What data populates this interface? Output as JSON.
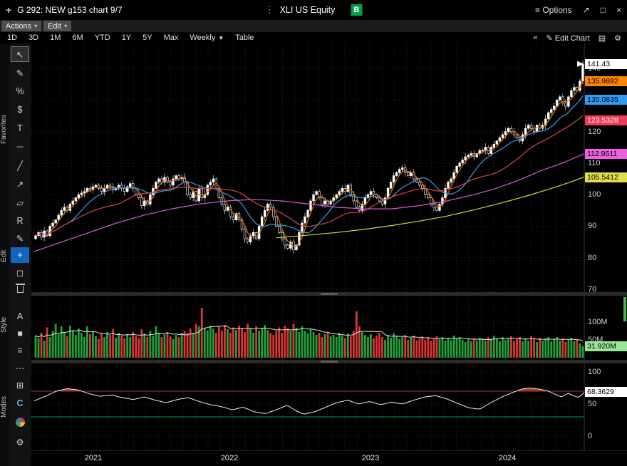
{
  "titlebar": {
    "drag_icon": "+",
    "title": "G 292: NEW g153 chart 9/7",
    "more_icon": "⋮",
    "security": "XLI US Equity",
    "panel_badge": "B",
    "options_icon": "≡",
    "options_label": "Options",
    "popout_icon": "↗",
    "maximize_icon": "□",
    "close_icon": "×"
  },
  "menubar": {
    "actions_label": "Actions",
    "edit_label": "Edit",
    "caret": "▾"
  },
  "toolbar": {
    "ranges": [
      "1D",
      "3D",
      "1M",
      "6M",
      "YTD",
      "1Y",
      "5Y",
      "Max"
    ],
    "period_label": "Weekly",
    "period_caret": "▼",
    "table_label": "Table",
    "collapse_icon": "«",
    "edit_chart_icon": "✎",
    "edit_chart_label": "Edit Chart",
    "snapshot_icon": "▤",
    "settings_icon": "⚙"
  },
  "sidebar": {
    "section_labels": [
      "Favorites",
      "Edit",
      "Style",
      "Modes"
    ],
    "tools": [
      {
        "name": "cursor",
        "glyph": "↖"
      },
      {
        "name": "draw",
        "glyph": "✎"
      },
      {
        "name": "measure-percent",
        "glyph": "%"
      },
      {
        "name": "measure-price",
        "glyph": "$"
      },
      {
        "name": "text-annotation",
        "glyph": "T"
      },
      {
        "name": "horizontal-line",
        "glyph": "─"
      },
      {
        "name": "trend-line",
        "glyph": "╱"
      },
      {
        "name": "arrow",
        "glyph": "↗"
      },
      {
        "name": "channel",
        "glyph": "▱"
      },
      {
        "name": "regression",
        "glyph": "R"
      },
      {
        "name": "edit-draw",
        "glyph": "✎"
      },
      {
        "name": "move",
        "glyph": "+"
      },
      {
        "name": "eraser",
        "glyph": "◻"
      },
      {
        "name": "delete",
        "glyph": ""
      },
      {
        "name": "text-style",
        "glyph": "A"
      },
      {
        "name": "fill-style",
        "glyph": "■"
      },
      {
        "name": "line-style",
        "glyph": "≡"
      },
      {
        "name": "dash-style",
        "glyph": "⋯"
      },
      {
        "name": "crosshair-mode",
        "glyph": "⊞"
      },
      {
        "name": "compass-mode",
        "glyph": "C"
      },
      {
        "name": "pie-mode",
        "glyph": ""
      },
      {
        "name": "settings",
        "glyph": "⚙"
      }
    ]
  },
  "price_axis": {
    "ticks": [
      "140",
      "130",
      "120",
      "110",
      "100",
      "90",
      "80",
      "70"
    ],
    "markers": [
      {
        "label": "141.43",
        "value": 141.43,
        "bg": "#ffffff",
        "fg": "#000000"
      },
      {
        "label": "135.9892",
        "value": 135.9892,
        "bg": "#ff8600",
        "fg": "#000000"
      },
      {
        "label": "130.0835",
        "value": 130.0835,
        "bg": "#2f9cf4",
        "fg": "#000000"
      },
      {
        "label": "123.5328",
        "value": 123.5328,
        "bg": "#ef3b57",
        "fg": "#ffffff"
      },
      {
        "label": "112.9511",
        "value": 112.9511,
        "bg": "#ee5fe2",
        "fg": "#000000"
      },
      {
        "label": "105.5412",
        "value": 105.5412,
        "bg": "#e0e04a",
        "fg": "#000000"
      }
    ]
  },
  "volume_axis": {
    "ticks": [
      "100M",
      "50M"
    ],
    "marker": {
      "label": "31.920M",
      "value": 31.92,
      "bg": "#98e698",
      "fg": "#000000"
    }
  },
  "rsi_axis": {
    "ticks": [
      "100",
      "50",
      "0"
    ],
    "marker": {
      "label": "68.3629",
      "value": 68.3629,
      "bg": "#ffffff",
      "fg": "#000000"
    }
  },
  "date_axis": {
    "years": [
      "2021",
      "2022",
      "2023",
      "2024"
    ]
  },
  "chart_data": {
    "type": "candlestick",
    "symbol": "XLI US Equity",
    "interval": "Weekly",
    "title": "G 292: NEW g153 chart 9/7",
    "price_ylim": [
      70,
      140
    ],
    "last_price": 141.43,
    "volume_unit": "M",
    "last_volume": 31.92,
    "volume_up_color": "#22a03c",
    "volume_down_color": "#d93636",
    "closes": [
      87,
      88,
      86.5,
      88.5,
      87,
      90,
      91,
      92,
      93.5,
      95,
      96,
      95,
      97,
      98,
      99,
      100,
      100.5,
      101,
      102,
      101.5,
      102.5,
      103,
      102,
      101,
      102,
      103,
      102.5,
      101.5,
      102,
      103,
      102,
      101,
      102.5,
      103.5,
      102,
      100,
      99,
      96.5,
      98,
      97,
      100,
      102,
      104,
      105,
      104,
      105.5,
      104,
      103,
      105,
      106,
      105,
      105.5,
      104,
      100,
      99,
      101,
      98,
      102,
      99,
      100,
      103,
      104,
      105,
      102,
      99,
      97,
      95,
      96,
      93,
      92,
      94,
      92,
      89,
      86,
      85,
      87,
      88,
      86,
      90,
      93,
      95,
      97,
      96,
      93,
      90,
      88,
      86,
      84,
      83,
      85,
      82.5,
      84,
      88,
      91,
      93,
      95,
      98,
      100,
      101,
      99,
      97,
      98,
      97,
      98,
      99,
      100,
      101,
      102,
      101,
      103,
      100,
      98,
      96,
      95,
      97,
      99,
      100,
      101,
      100,
      99,
      98,
      97,
      99,
      102,
      104,
      106,
      107,
      108,
      108.5,
      107,
      106,
      107,
      105,
      104,
      103,
      102,
      100,
      99,
      97,
      96,
      95,
      97,
      99,
      102,
      104,
      105,
      107,
      109,
      110,
      111,
      112,
      112.5,
      113,
      112,
      113,
      114,
      114,
      115,
      113,
      115,
      116,
      117,
      118,
      119,
      120,
      121,
      120,
      119,
      118,
      117,
      119,
      121,
      122,
      121,
      120,
      122,
      121,
      122,
      124,
      126,
      127,
      128,
      130,
      131,
      129,
      128,
      131,
      133,
      134,
      133,
      136,
      141.43
    ],
    "volumes": [
      62,
      55,
      70,
      48,
      85,
      58,
      75,
      95,
      66,
      88,
      72,
      60,
      90,
      76,
      64,
      82,
      70,
      58,
      88,
      66,
      74,
      60,
      52,
      68,
      58,
      72,
      64,
      80,
      56,
      70,
      62,
      54,
      66,
      58,
      72,
      60,
      55,
      80,
      68,
      58,
      75,
      62,
      88,
      70,
      58,
      66,
      72,
      60,
      52,
      64,
      58,
      70,
      75,
      68,
      82,
      70,
      95,
      88,
      140,
      84,
      76,
      90,
      82,
      70,
      88,
      76,
      92,
      80,
      70,
      85,
      78,
      90,
      84,
      72,
      95,
      82,
      70,
      88,
      76,
      84,
      92,
      78,
      70,
      64,
      76,
      85,
      70,
      90,
      82,
      76,
      95,
      84,
      72,
      88,
      76,
      68,
      80,
      72,
      64,
      70,
      58,
      66,
      72,
      60,
      64,
      58,
      70,
      62,
      55,
      68,
      60,
      76,
      130,
      88,
      72,
      64,
      58,
      66,
      54,
      62,
      70,
      58,
      50,
      64,
      56,
      68,
      60,
      52,
      58,
      64,
      50,
      56,
      62,
      48,
      54,
      60,
      50,
      58,
      46,
      54,
      60,
      52,
      58,
      48,
      56,
      50,
      62,
      54,
      58,
      50,
      44,
      52,
      46,
      54,
      48,
      56,
      54,
      48,
      58,
      50,
      62,
      54,
      46,
      58,
      50,
      54,
      60,
      48,
      52,
      58,
      46,
      54,
      48,
      60,
      52,
      44,
      56,
      48,
      54,
      58,
      46,
      52,
      58,
      48,
      54,
      44,
      50,
      56,
      46,
      52,
      40,
      31.92
    ],
    "moving_averages": [
      {
        "name": "mavg-short",
        "color": "#e07000",
        "period": 4,
        "last": 135.9892
      },
      {
        "name": "mavg-mid",
        "color": "#3d9be9",
        "period": 13,
        "last": 130.0835
      },
      {
        "name": "mavg-long",
        "color": "#dc4444",
        "period": 30,
        "last": 123.5328
      },
      {
        "name": "mavg-52wk",
        "color": "#d65ad6",
        "last": 112.9511,
        "anchors": [
          [
            0,
            82
          ],
          [
            0.05,
            85
          ],
          [
            0.1,
            88
          ],
          [
            0.15,
            91
          ],
          [
            0.2,
            93.5
          ],
          [
            0.25,
            95.5
          ],
          [
            0.3,
            97
          ],
          [
            0.35,
            98
          ],
          [
            0.4,
            98.5
          ],
          [
            0.45,
            98
          ],
          [
            0.5,
            97
          ],
          [
            0.55,
            96
          ],
          [
            0.6,
            95.5
          ],
          [
            0.65,
            95.5
          ],
          [
            0.7,
            96.5
          ],
          [
            0.75,
            98
          ],
          [
            0.8,
            100
          ],
          [
            0.84,
            102
          ],
          [
            0.88,
            104.5
          ],
          [
            0.92,
            107.5
          ],
          [
            0.96,
            110
          ],
          [
            1,
            112.95
          ]
        ]
      },
      {
        "name": "mavg-156wk",
        "color": "#d6d63c",
        "last": 105.5412,
        "anchors": [
          [
            0.44,
            86.3
          ],
          [
            0.5,
            87.2
          ],
          [
            0.55,
            88
          ],
          [
            0.6,
            89
          ],
          [
            0.65,
            90.2
          ],
          [
            0.7,
            91.6
          ],
          [
            0.75,
            93.2
          ],
          [
            0.8,
            95.2
          ],
          [
            0.85,
            97.4
          ],
          [
            0.9,
            99.8
          ],
          [
            0.95,
            102.5
          ],
          [
            1,
            105.54
          ]
        ]
      }
    ],
    "rsi": {
      "last": 68.3629,
      "overbought": 70,
      "oversold": 30,
      "line_color": "#ededed",
      "overbought_color": "#b03030",
      "oversold_color": "#00a04a",
      "fill_color": "#a93226",
      "anchors": [
        [
          0,
          55
        ],
        [
          0.02,
          62
        ],
        [
          0.04,
          70
        ],
        [
          0.06,
          74
        ],
        [
          0.08,
          72
        ],
        [
          0.1,
          66
        ],
        [
          0.12,
          62
        ],
        [
          0.14,
          64
        ],
        [
          0.16,
          60
        ],
        [
          0.18,
          57
        ],
        [
          0.2,
          61
        ],
        [
          0.22,
          56
        ],
        [
          0.24,
          52
        ],
        [
          0.26,
          57
        ],
        [
          0.28,
          60
        ],
        [
          0.3,
          54
        ],
        [
          0.32,
          49
        ],
        [
          0.34,
          46
        ],
        [
          0.36,
          41
        ],
        [
          0.38,
          45
        ],
        [
          0.4,
          38
        ],
        [
          0.42,
          35
        ],
        [
          0.44,
          41
        ],
        [
          0.46,
          48
        ],
        [
          0.475,
          40
        ],
        [
          0.49,
          34
        ],
        [
          0.51,
          38
        ],
        [
          0.53,
          45
        ],
        [
          0.55,
          52
        ],
        [
          0.57,
          56
        ],
        [
          0.59,
          50
        ],
        [
          0.61,
          54
        ],
        [
          0.63,
          49
        ],
        [
          0.65,
          53
        ],
        [
          0.67,
          50
        ],
        [
          0.69,
          56
        ],
        [
          0.71,
          61
        ],
        [
          0.73,
          63
        ],
        [
          0.75,
          58
        ],
        [
          0.77,
          51
        ],
        [
          0.79,
          44
        ],
        [
          0.81,
          42
        ],
        [
          0.83,
          52
        ],
        [
          0.85,
          61
        ],
        [
          0.87,
          68
        ],
        [
          0.885,
          73
        ],
        [
          0.9,
          75
        ],
        [
          0.92,
          73
        ],
        [
          0.935,
          70
        ],
        [
          0.95,
          64
        ],
        [
          0.96,
          61
        ],
        [
          0.97,
          67
        ],
        [
          0.98,
          63
        ],
        [
          0.99,
          60
        ],
        [
          1,
          68.36
        ]
      ]
    }
  }
}
